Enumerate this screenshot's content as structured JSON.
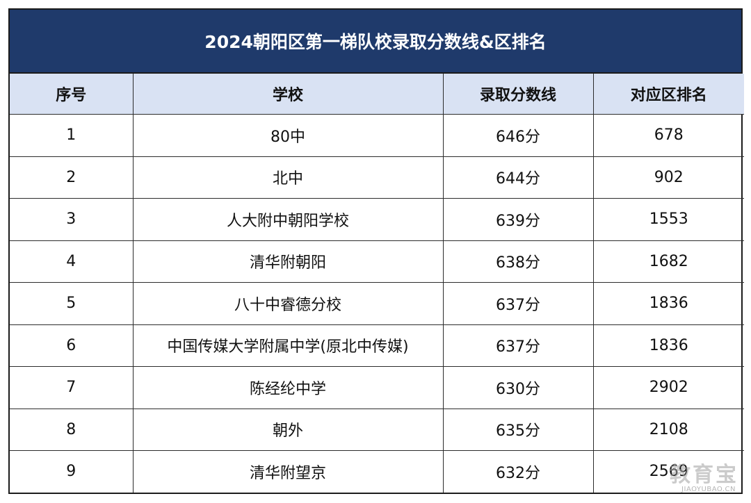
{
  "title": "2024朝阳区第一梯队校录取分数线&区排名",
  "columns": [
    "序号",
    "学校",
    "录取分数线",
    "对应区排名"
  ],
  "rows": [
    {
      "no": "1",
      "school": "80中",
      "score": "646分",
      "rank": "678"
    },
    {
      "no": "2",
      "school": "北中",
      "score": "644分",
      "rank": "902"
    },
    {
      "no": "3",
      "school": "人大附中朝阳学校",
      "score": "639分",
      "rank": "1553"
    },
    {
      "no": "4",
      "school": "清华附朝阳",
      "score": "638分",
      "rank": "1682"
    },
    {
      "no": "5",
      "school": "八十中睿德分校",
      "score": "637分",
      "rank": "1836"
    },
    {
      "no": "6",
      "school": "中国传媒大学附属中学(原北中传媒)",
      "score": "637分",
      "rank": "1836"
    },
    {
      "no": "7",
      "school": "陈经纶中学",
      "score": "630分",
      "rank": "2902"
    },
    {
      "no": "8",
      "school": "朝外",
      "score": "635分",
      "rank": "2108"
    },
    {
      "no": "9",
      "school": "清华附望京",
      "score": "632分",
      "rank": "2569"
    }
  ],
  "watermark": {
    "logo_text": "教育宝",
    "domain": "JIAOYUBAO.CN"
  },
  "colors": {
    "title_bg": "#1f3a6b",
    "header_bg": "#d9e2f3"
  }
}
